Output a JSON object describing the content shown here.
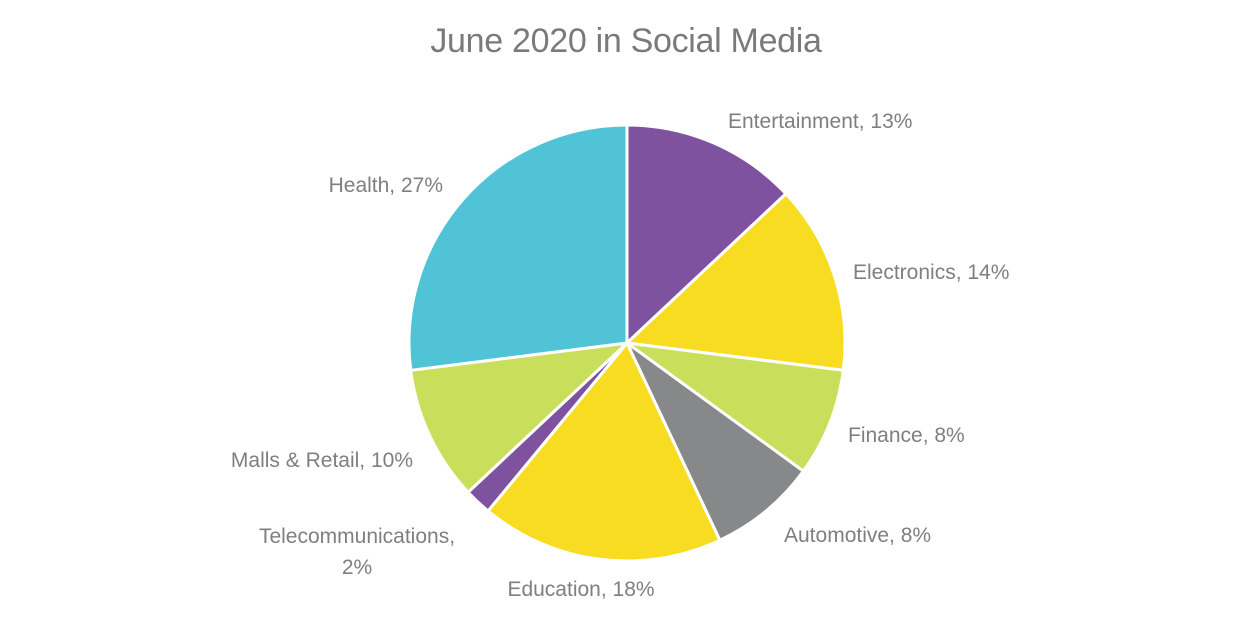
{
  "chart_data": {
    "type": "pie",
    "title": "June 2020 in Social Media",
    "slices": [
      {
        "label": "Entertainment",
        "value": 13,
        "display": "Entertainment, 13%",
        "color": "#7f52a0"
      },
      {
        "label": "Electronics",
        "value": 14,
        "display": "Electronics, 14%",
        "color": "#f7dc22"
      },
      {
        "label": "Finance",
        "value": 8,
        "display": "Finance, 8%",
        "color": "#c9df5c"
      },
      {
        "label": "Automotive",
        "value": 8,
        "display": "Automotive, 8%",
        "color": "#87888a"
      },
      {
        "label": "Education",
        "value": 18,
        "display": "Education, 18%",
        "color": "#f7dc22"
      },
      {
        "label": "Telecommunications",
        "value": 2,
        "display": "Telecommunications, 2%",
        "color": "#7f52a0"
      },
      {
        "label": "Malls & Retail",
        "value": 10,
        "display": "Malls & Retail, 10%",
        "color": "#c9df5c"
      },
      {
        "label": "Health",
        "value": 27,
        "display": "Health, 27%",
        "color": "#50c3d6"
      }
    ],
    "legend": "none",
    "label_color": "#7f7f7f"
  }
}
